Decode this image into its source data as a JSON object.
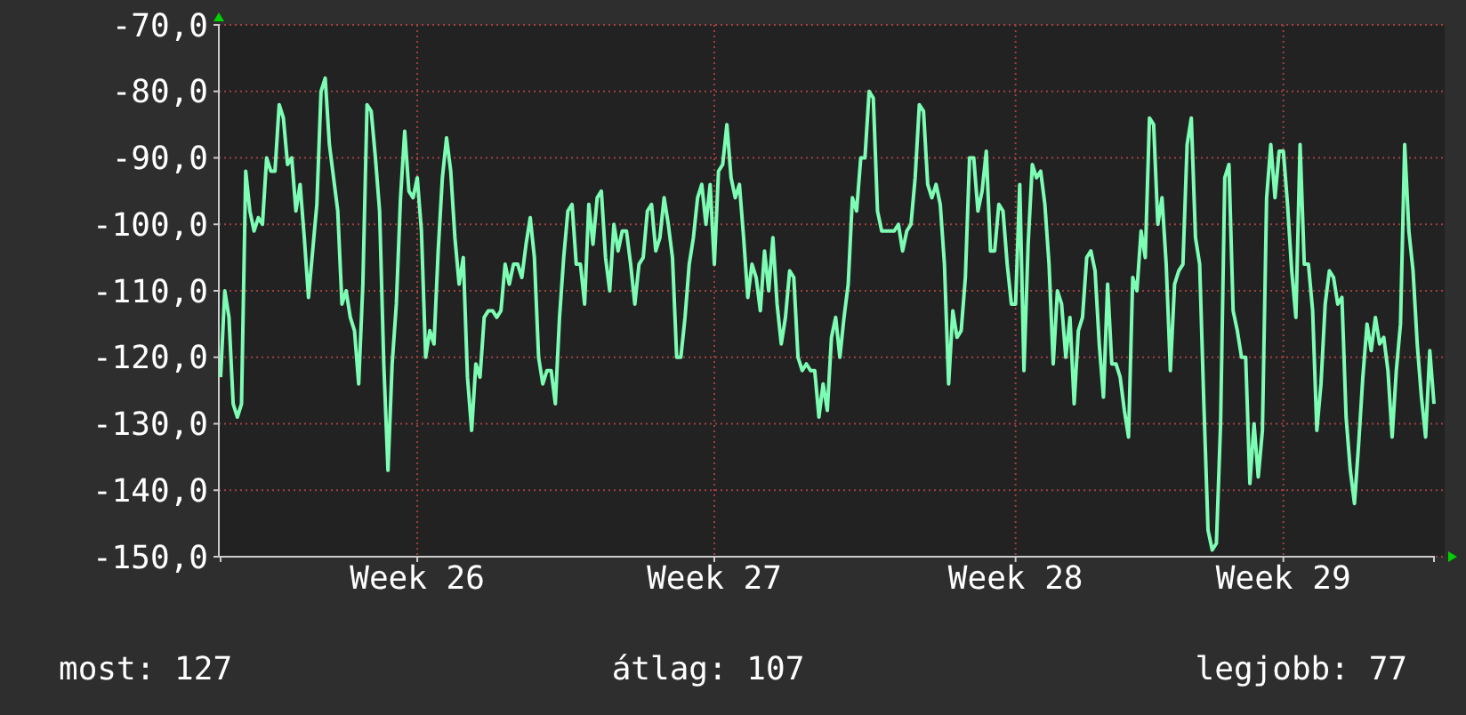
{
  "chart_data": {
    "type": "line",
    "series": [
      {
        "color": "#7dfcb4",
        "values": [
          -123,
          -110,
          -114,
          -127,
          -129,
          -127,
          -92,
          -98,
          -101,
          -99,
          -100,
          -90,
          -92,
          -92,
          -82,
          -84,
          -91,
          -90,
          -98,
          -94,
          -102,
          -111,
          -104,
          -97,
          -80,
          -78,
          -88,
          -93,
          -98,
          -112,
          -110,
          -114,
          -116,
          -124,
          -109,
          -82,
          -83,
          -90,
          -98,
          -121,
          -137,
          -121,
          -112,
          -96,
          -86,
          -95,
          -96,
          -93,
          -101,
          -120,
          -116,
          -118,
          -104,
          -93,
          -87,
          -92,
          -102,
          -109,
          -105,
          -123,
          -131,
          -121,
          -123,
          -114,
          -113,
          -113,
          -114,
          -113,
          -106,
          -109,
          -106,
          -106,
          -108,
          -103,
          -99,
          -105,
          -120,
          -124,
          -122,
          -122,
          -127,
          -114,
          -105,
          -98,
          -97,
          -106,
          -106,
          -112,
          -97,
          -103,
          -96,
          -95,
          -105,
          -110,
          -100,
          -104,
          -101,
          -101,
          -106,
          -112,
          -106,
          -105,
          -98,
          -97,
          -104,
          -102,
          -96,
          -100,
          -105,
          -120,
          -120,
          -114,
          -106,
          -102,
          -96,
          -94,
          -100,
          -94,
          -106,
          -92,
          -91,
          -85,
          -93,
          -96,
          -94,
          -102,
          -111,
          -106,
          -108,
          -113,
          -104,
          -110,
          -102,
          -112,
          -118,
          -114,
          -107,
          -108,
          -120,
          -122,
          -121,
          -122,
          -122,
          -129,
          -124,
          -128,
          -117,
          -114,
          -120,
          -114,
          -109,
          -96,
          -98,
          -90,
          -90,
          -80,
          -81,
          -98,
          -101,
          -101,
          -101,
          -101,
          -100,
          -104,
          -101,
          -100,
          -93,
          -82,
          -83,
          -94,
          -96,
          -94,
          -97,
          -106,
          -124,
          -113,
          -117,
          -116,
          -108,
          -90,
          -90,
          -98,
          -95,
          -89,
          -104,
          -104,
          -97,
          -98,
          -106,
          -112,
          -112,
          -94,
          -122,
          -103,
          -91,
          -93,
          -92,
          -97,
          -106,
          -121,
          -110,
          -112,
          -120,
          -114,
          -127,
          -116,
          -114,
          -105,
          -104,
          -107,
          -118,
          -126,
          -109,
          -121,
          -121,
          -123,
          -128,
          -132,
          -108,
          -110,
          -101,
          -105,
          -84,
          -85,
          -100,
          -96,
          -106,
          -122,
          -109,
          -107,
          -106,
          -88,
          -84,
          -102,
          -106,
          -127,
          -146,
          -149,
          -148,
          -130,
          -93,
          -91,
          -113,
          -116,
          -120,
          -120,
          -139,
          -130,
          -138,
          -131,
          -96,
          -88,
          -96,
          -89,
          -89,
          -97,
          -107,
          -114,
          -88,
          -106,
          -106,
          -113,
          -131,
          -124,
          -112,
          -107,
          -108,
          -112,
          -111,
          -129,
          -137,
          -142,
          -133,
          -123,
          -115,
          -119,
          -114,
          -118,
          -117,
          -122,
          -132,
          -122,
          -115,
          -88,
          -101,
          -107,
          -118,
          -126,
          -132,
          -119,
          -127
        ]
      }
    ],
    "categories": [
      null,
      null,
      null,
      null,
      null,
      null,
      null,
      null,
      null,
      null,
      null,
      null,
      null,
      null,
      null,
      null,
      null,
      null,
      null,
      null,
      null,
      null,
      null,
      null,
      null,
      null,
      null,
      null,
      null,
      null,
      null,
      null,
      null,
      null,
      null,
      null,
      null,
      null,
      null,
      null,
      null,
      null,
      null,
      null,
      null,
      null,
      null,
      "Week 26",
      null,
      null,
      null,
      null,
      null,
      null,
      null,
      null,
      null,
      null,
      null,
      null,
      null,
      null,
      null,
      null,
      null,
      null,
      null,
      null,
      null,
      null,
      null,
      null,
      null,
      null,
      null,
      null,
      null,
      null,
      null,
      null,
      null,
      null,
      null,
      null,
      null,
      null,
      null,
      null,
      null,
      null,
      null,
      null,
      null,
      null,
      null,
      null,
      null,
      null,
      null,
      null,
      null,
      null,
      null,
      null,
      null,
      null,
      null,
      null,
      null,
      null,
      null,
      null,
      null,
      null,
      null,
      null,
      null,
      null,
      "Week 27",
      null,
      null,
      null,
      null,
      null,
      null,
      null,
      null,
      null,
      null,
      null,
      null,
      null,
      null,
      null,
      null,
      null,
      null,
      null,
      null,
      null,
      null,
      null,
      null,
      null,
      null,
      null,
      null,
      null,
      null,
      null,
      null,
      null,
      null,
      null,
      null,
      null,
      null,
      null,
      null,
      null,
      null,
      null,
      null,
      null,
      null,
      null,
      null,
      null,
      null,
      null,
      null,
      null,
      null,
      null,
      null,
      null,
      null,
      null,
      null,
      null,
      null,
      null,
      null,
      null,
      null,
      null,
      null,
      null,
      null,
      null,
      "Week 28",
      null,
      null,
      null,
      null,
      null,
      null,
      null,
      null,
      null,
      null,
      null,
      null,
      null,
      null,
      null,
      null,
      null,
      null,
      null,
      null,
      null,
      null,
      null,
      null,
      null,
      null,
      null,
      null,
      null,
      null,
      null,
      null,
      null,
      null,
      null,
      null,
      null,
      null,
      null,
      null,
      null,
      null,
      null,
      null,
      null,
      null,
      null,
      null,
      null,
      null,
      null,
      null,
      null,
      null,
      null,
      null,
      null,
      null,
      null,
      null,
      null,
      null,
      null,
      "Week 29",
      null,
      null,
      null,
      null,
      null,
      null,
      null,
      null,
      null,
      null,
      null,
      null,
      null,
      null,
      null,
      null,
      null,
      null,
      null,
      null,
      null,
      null,
      null,
      null,
      null,
      null,
      null,
      null,
      null,
      null,
      null,
      null,
      null,
      null,
      null,
      null
    ],
    "ylim": [
      -150,
      -70
    ],
    "yticks": [
      {
        "value": -150,
        "label": "-150,0"
      },
      {
        "value": -140,
        "label": "-140,0"
      },
      {
        "value": -130,
        "label": "-130,0"
      },
      {
        "value": -120,
        "label": "-120,0"
      },
      {
        "value": -110,
        "label": "-110,0"
      },
      {
        "value": -100,
        "label": "-100,0"
      },
      {
        "value": -90,
        "label": "-90,0"
      },
      {
        "value": -80,
        "label": "-80,0"
      },
      {
        "value": -70,
        "label": "-70,0"
      }
    ],
    "grid": true,
    "annotations": [
      "most: 127",
      "átlag: 107",
      "legjobb: 77"
    ]
  }
}
